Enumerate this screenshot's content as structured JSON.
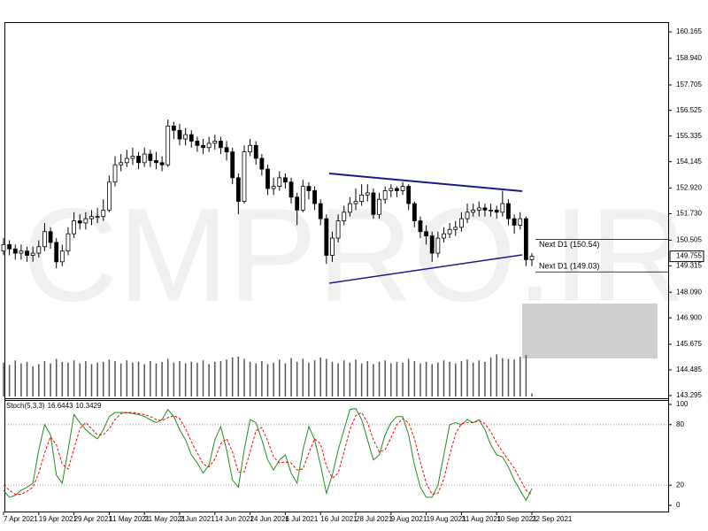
{
  "chart_data": [
    {
      "type": "candlestick",
      "watermark": "CMPRO.IR",
      "up_color": "#ffffff",
      "down_color": "#000000",
      "categories": [
        "7 Apr 2021",
        null,
        null,
        null,
        null,
        null,
        "19 Apr 2021",
        null,
        null,
        null,
        null,
        null,
        "29 Apr 2021",
        null,
        null,
        null,
        null,
        null,
        "11 May 2021",
        null,
        null,
        null,
        null,
        null,
        "21 May 2021",
        null,
        null,
        null,
        null,
        null,
        "2 Jun 2021",
        null,
        null,
        null,
        null,
        null,
        "14 Jun 2021",
        null,
        null,
        null,
        null,
        null,
        "24 Jun 2021",
        null,
        null,
        null,
        null,
        null,
        "6 Jul 2021",
        null,
        null,
        null,
        null,
        null,
        "16 Jul 2021",
        null,
        null,
        null,
        null,
        null,
        "28 Jul 2021",
        null,
        null,
        null,
        null,
        null,
        "9 Aug 2021",
        null,
        null,
        null,
        null,
        null,
        "19 Aug 2021",
        null,
        null,
        null,
        null,
        null,
        "31 Aug 2021",
        null,
        null,
        null,
        null,
        null,
        "10 Sep 2021",
        null,
        null,
        null,
        null,
        null,
        "22 Sep 2021"
      ],
      "open": [
        150.0,
        150.3,
        150.1,
        149.9,
        150.0,
        149.8,
        149.9,
        150.2,
        150.9,
        150.4,
        149.5,
        150.0,
        150.8,
        151.4,
        151.3,
        151.5,
        151.6,
        151.6,
        151.9,
        153.2,
        154.0,
        154.1,
        154.3,
        154.4,
        154.1,
        154.5,
        154.2,
        154.1,
        154.0,
        155.8,
        155.6,
        155.2,
        155.4,
        155.1,
        154.9,
        154.8,
        155.0,
        155.1,
        154.8,
        154.6,
        153.4,
        152.3,
        154.6,
        154.9,
        154.3,
        153.8,
        152.9,
        153.0,
        153.4,
        153.2,
        152.5,
        151.9,
        153.0,
        152.8,
        152.2,
        151.5,
        149.8,
        150.6,
        151.4,
        151.8,
        152.2,
        152.3,
        152.6,
        152.7,
        151.7,
        152.4,
        152.8,
        152.9,
        152.8,
        153.0,
        152.2,
        151.4,
        150.9,
        150.7,
        149.9,
        150.6,
        150.8,
        151.0,
        151.1,
        151.5,
        151.8,
        151.9,
        152.0,
        151.9,
        151.9,
        151.8,
        152.2,
        151.5,
        151.2,
        151.5,
        149.6
      ],
      "high": [
        150.6,
        150.5,
        150.3,
        150.3,
        150.2,
        150.2,
        150.5,
        151.3,
        151.1,
        150.6,
        150.3,
        151.1,
        151.8,
        151.7,
        151.8,
        151.9,
        152.0,
        152.4,
        153.5,
        154.4,
        154.5,
        154.7,
        154.8,
        154.6,
        154.8,
        154.7,
        154.6,
        154.4,
        156.1,
        156.0,
        155.9,
        155.7,
        155.6,
        155.3,
        155.2,
        155.3,
        155.4,
        155.3,
        155.1,
        154.8,
        153.6,
        154.9,
        155.2,
        155.1,
        154.5,
        154.0,
        153.4,
        153.7,
        153.6,
        153.4,
        152.7,
        153.3,
        153.2,
        153.0,
        152.4,
        151.7,
        150.9,
        151.7,
        152.1,
        152.5,
        152.9,
        153.1,
        153.1,
        152.9,
        152.7,
        153.0,
        153.1,
        153.0,
        153.2,
        153.1,
        152.3,
        151.6,
        151.2,
        150.9,
        150.9,
        151.1,
        151.3,
        151.4,
        151.8,
        152.2,
        152.2,
        152.3,
        152.2,
        152.2,
        152.1,
        152.8,
        152.4,
        151.7,
        151.8,
        151.6,
        149.9
      ],
      "low": [
        149.8,
        149.8,
        149.6,
        149.6,
        149.5,
        149.5,
        149.7,
        150.0,
        150.1,
        149.2,
        149.3,
        149.8,
        150.6,
        151.0,
        151.0,
        151.2,
        151.3,
        151.4,
        151.8,
        153.0,
        153.7,
        153.9,
        154.0,
        153.8,
        153.9,
        153.9,
        153.8,
        153.7,
        153.9,
        155.2,
        154.9,
        154.9,
        154.8,
        154.6,
        154.5,
        154.6,
        154.7,
        154.5,
        154.2,
        153.1,
        151.7,
        152.2,
        154.4,
        154.0,
        153.5,
        152.6,
        152.6,
        152.8,
        152.9,
        152.2,
        151.2,
        151.8,
        152.4,
        151.9,
        151.2,
        149.4,
        149.5,
        150.4,
        151.2,
        151.6,
        151.9,
        152.1,
        152.3,
        151.5,
        151.5,
        152.2,
        152.5,
        152.5,
        152.6,
        151.9,
        151.1,
        150.6,
        150.3,
        149.5,
        149.7,
        150.4,
        150.6,
        150.7,
        150.9,
        151.3,
        151.6,
        151.6,
        151.6,
        151.6,
        151.5,
        151.6,
        151.2,
        150.8,
        151.0,
        149.3,
        149.3
      ],
      "close": [
        150.3,
        150.1,
        149.9,
        150.0,
        149.8,
        149.9,
        150.2,
        150.9,
        150.4,
        149.5,
        150.0,
        150.8,
        151.4,
        151.3,
        151.5,
        151.6,
        151.6,
        151.9,
        153.2,
        154.0,
        154.1,
        154.3,
        154.4,
        154.1,
        154.5,
        154.2,
        154.1,
        154.0,
        155.8,
        155.6,
        155.2,
        155.4,
        155.1,
        154.9,
        154.8,
        155.0,
        155.1,
        154.8,
        154.6,
        153.4,
        152.3,
        154.6,
        154.9,
        154.3,
        153.8,
        152.9,
        153.0,
        153.4,
        153.2,
        152.5,
        151.9,
        153.0,
        152.8,
        152.2,
        151.5,
        149.8,
        150.6,
        151.4,
        151.8,
        152.2,
        152.3,
        152.6,
        152.7,
        151.7,
        152.4,
        152.8,
        152.9,
        152.8,
        153.0,
        152.2,
        151.4,
        150.9,
        150.7,
        149.9,
        150.6,
        150.8,
        151.0,
        151.1,
        151.5,
        151.8,
        151.9,
        152.0,
        151.9,
        151.9,
        151.8,
        152.2,
        151.5,
        151.2,
        151.5,
        149.6,
        149.755
      ],
      "ylim": [
        143.17,
        160.62
      ],
      "yticks": [
        160.165,
        {
          "value": 158.94,
          "label": "158.940"
        },
        157.705,
        156.525,
        155.335,
        154.145,
        {
          "value": 152.92,
          "label": "152.920"
        },
        {
          "value": 151.73,
          "label": "151.730"
        },
        150.505,
        149.315,
        {
          "value": 148.09,
          "label": "148.090"
        },
        {
          "value": 146.9,
          "label": "146.900"
        },
        145.675,
        144.485,
        143.295
      ],
      "annotations": [
        {
          "label": "Next D1 (150.54)",
          "value": 150.54
        },
        {
          "label": "Next D1 (149.03)",
          "value": 149.03
        }
      ]
    },
    {
      "type": "bar",
      "color": "#555555",
      "ylim": [
        0,
        500
      ],
      "values": [
        45,
        42,
        48,
        44,
        46,
        40,
        43,
        47,
        44,
        50,
        46,
        45,
        48,
        44,
        47,
        43,
        45,
        46,
        49,
        47,
        44,
        48,
        45,
        46,
        43,
        47,
        44,
        46,
        50,
        45,
        47,
        44,
        46,
        45,
        48,
        43,
        46,
        47,
        49,
        52,
        53,
        50,
        46,
        44,
        47,
        43,
        45,
        49,
        44,
        51,
        46,
        50,
        45,
        48,
        52,
        50,
        46,
        44,
        48,
        45,
        49,
        44,
        47,
        43,
        46,
        48,
        44,
        46,
        45,
        50,
        47,
        44,
        46,
        43,
        45,
        48,
        46,
        44,
        47,
        49,
        45,
        48,
        46,
        52,
        56,
        51,
        50,
        49,
        53,
        55,
        4
      ]
    },
    {
      "type": "line",
      "title": "Stoch(5,3,3)",
      "ylim": [
        -6.1,
        104.4
      ],
      "yticks": [
        100,
        80,
        20,
        0
      ],
      "levels": [
        80,
        20
      ],
      "series": [
        {
          "color": "#228b22",
          "values": [
            15,
            8,
            10,
            15,
            18,
            22,
            55,
            80,
            70,
            30,
            22,
            55,
            90,
            82,
            75,
            70,
            66,
            75,
            88,
            92,
            92,
            92,
            91,
            90,
            88,
            85,
            82,
            85,
            95,
            88,
            75,
            65,
            50,
            42,
            32,
            40,
            65,
            78,
            55,
            25,
            18,
            55,
            85,
            82,
            65,
            45,
            35,
            45,
            50,
            32,
            22,
            55,
            78,
            65,
            40,
            12,
            30,
            55,
            75,
            95,
            96,
            85,
            65,
            45,
            50,
            70,
            82,
            88,
            88,
            70,
            40,
            18,
            8,
            8,
            20,
            50,
            80,
            82,
            80,
            85,
            82,
            85,
            75,
            60,
            50,
            48,
            38,
            25,
            15,
            5,
            16.6443
          ]
        },
        {
          "color": "#ff0000",
          "dashed": true,
          "values": [
            20,
            15,
            11,
            11,
            14,
            18,
            32,
            52,
            68,
            60,
            41,
            36,
            56,
            76,
            82,
            76,
            70,
            70,
            76,
            85,
            91,
            92,
            92,
            91,
            90,
            88,
            85,
            84,
            87,
            89,
            86,
            76,
            63,
            52,
            41,
            38,
            46,
            61,
            66,
            53,
            33,
            33,
            53,
            74,
            77,
            64,
            48,
            42,
            43,
            42,
            35,
            36,
            52,
            66,
            61,
            39,
            27,
            32,
            53,
            75,
            89,
            92,
            82,
            65,
            53,
            55,
            67,
            80,
            86,
            82,
            66,
            43,
            22,
            11,
            12,
            26,
            50,
            71,
            81,
            82,
            82,
            84,
            81,
            73,
            62,
            53,
            45,
            37,
            26,
            15,
            10.3429
          ]
        }
      ]
    }
  ]
}
